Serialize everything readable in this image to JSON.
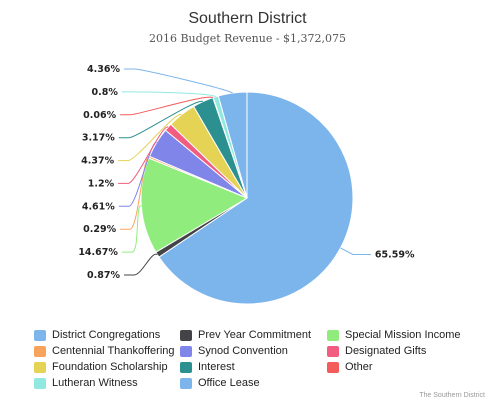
{
  "chart_data": {
    "type": "pie",
    "title": "Southern District",
    "subtitle": "2016 Budget Revenue - $1,372,075",
    "slices": [
      {
        "name": "District Congregations",
        "value": 65.59,
        "label": "65.59%",
        "color": "#7cb5ec"
      },
      {
        "name": "Prev Year Commitment",
        "value": 0.87,
        "label": "0.87%",
        "color": "#434348"
      },
      {
        "name": "Special Mission Income",
        "value": 14.67,
        "label": "14.67%",
        "color": "#90ed7d"
      },
      {
        "name": "Centennial Thankoffering",
        "value": 0.29,
        "label": "0.29%",
        "color": "#f7a35c"
      },
      {
        "name": "Synod Convention",
        "value": 4.61,
        "label": "4.61%",
        "color": "#8085e9"
      },
      {
        "name": "Designated Gifts",
        "value": 1.2,
        "label": "1.2%",
        "color": "#f15c80"
      },
      {
        "name": "Foundation Scholarship",
        "value": 4.37,
        "label": "4.37%",
        "color": "#e4d354"
      },
      {
        "name": "Interest",
        "value": 3.17,
        "label": "3.17%",
        "color": "#2b908f"
      },
      {
        "name": "Other",
        "value": 0.06,
        "label": "0.06%",
        "color": "#f45b5b"
      },
      {
        "name": "Lutheran Witness",
        "value": 0.8,
        "label": "0.8%",
        "color": "#91e8e1"
      },
      {
        "name": "Office Lease",
        "value": 4.36,
        "label": "4.36%",
        "color": "#7cb5ec"
      }
    ],
    "legend_position": "bottom",
    "credits": "The Southern District"
  }
}
